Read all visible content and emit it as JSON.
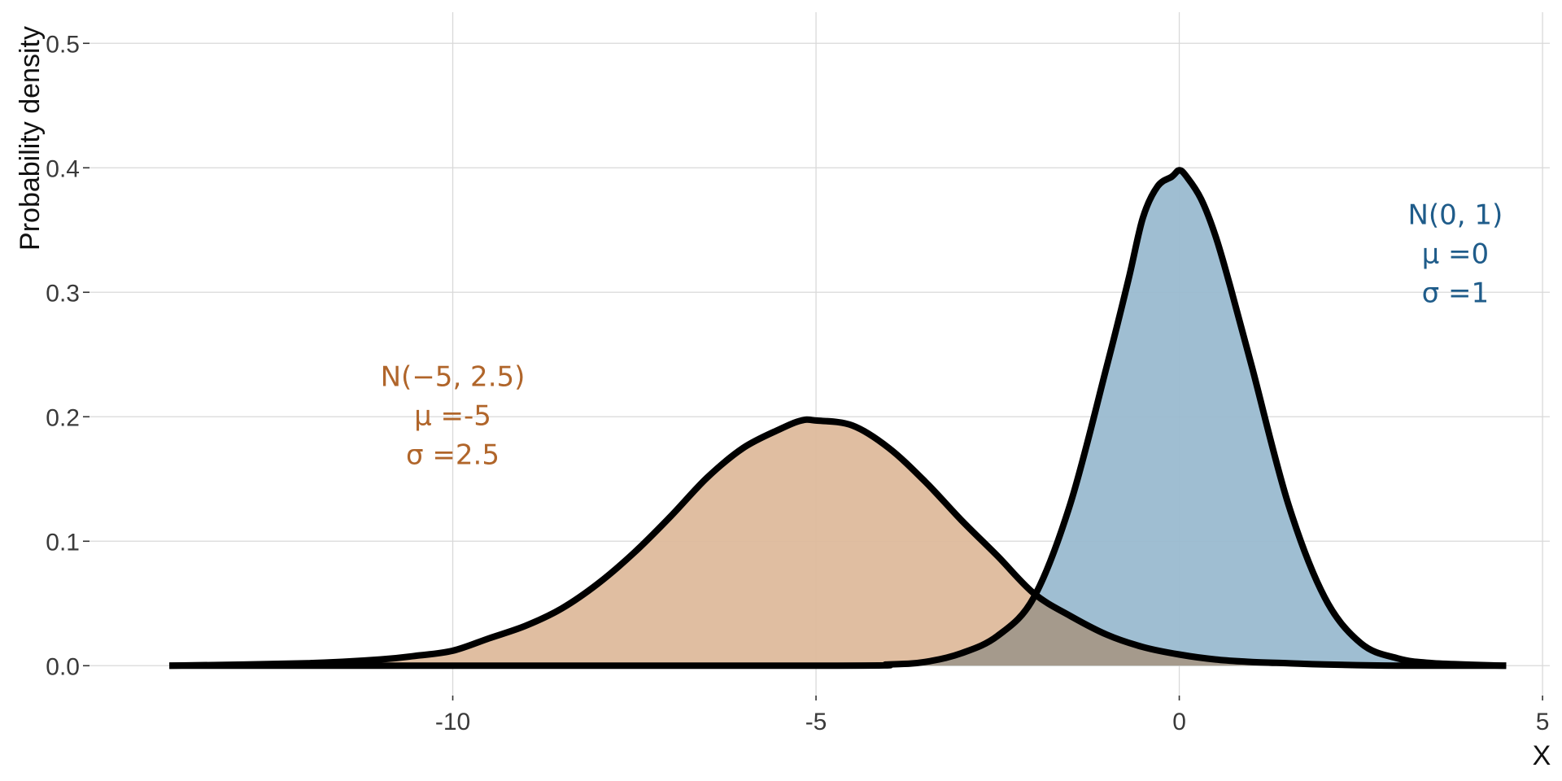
{
  "chart_data": {
    "type": "area",
    "xlabel": "X",
    "ylabel": "Probability density",
    "xlim": [
      -15.0,
      5.1
    ],
    "ylim": [
      -0.024,
      0.525
    ],
    "xticks": [
      -10,
      -5,
      0,
      5
    ],
    "xtick_labels": [
      "-10",
      "-5",
      "0",
      "5"
    ],
    "yticks": [
      0.0,
      0.1,
      0.2,
      0.3,
      0.4,
      0.5
    ],
    "ytick_labels": [
      "0.0",
      "0.1",
      "0.2",
      "0.3",
      "0.4",
      "0.5"
    ],
    "grid": true,
    "series": [
      {
        "fill": "#deba9c",
        "text_color": "#b0652a",
        "x": [
          -13.9,
          -12.0,
          -11.0,
          -10.5,
          -10.0,
          -9.5,
          -9.0,
          -8.5,
          -8.0,
          -7.5,
          -7.0,
          -6.5,
          -6.0,
          -5.5,
          -5.2,
          -5.0,
          -4.5,
          -4.0,
          -3.5,
          -3.0,
          -2.5,
          -2.0,
          -1.5,
          -1.0,
          -0.5,
          0.0,
          0.5,
          1.0,
          1.5,
          2.0,
          3.0,
          4.5
        ],
        "y": [
          0.0,
          0.002,
          0.005,
          0.008,
          0.012,
          0.022,
          0.032,
          0.046,
          0.066,
          0.091,
          0.12,
          0.151,
          0.175,
          0.19,
          0.197,
          0.197,
          0.193,
          0.175,
          0.148,
          0.117,
          0.088,
          0.058,
          0.04,
          0.025,
          0.015,
          0.009,
          0.005,
          0.003,
          0.002,
          0.001,
          0.0,
          0.0
        ],
        "annotation": [
          "N(−5, 2.5)",
          "μ =-5",
          "σ =2.5"
        ],
        "annotation_pos": [
          -10.0,
          0.2
        ]
      },
      {
        "fill": "#9abad0",
        "text_color": "#1f5c8a",
        "x": [
          -13.9,
          -5.0,
          -4.0,
          -3.5,
          -3.0,
          -2.5,
          -2.0,
          -1.5,
          -1.0,
          -0.7,
          -0.5,
          -0.3,
          -0.1,
          0.0,
          0.1,
          0.3,
          0.5,
          0.7,
          1.0,
          1.5,
          2.0,
          2.5,
          3.0,
          3.5,
          4.5
        ],
        "y": [
          0.0,
          0.0,
          0.001,
          0.003,
          0.01,
          0.024,
          0.055,
          0.13,
          0.24,
          0.31,
          0.36,
          0.385,
          0.393,
          0.398,
          0.393,
          0.375,
          0.345,
          0.305,
          0.24,
          0.13,
          0.055,
          0.018,
          0.006,
          0.002,
          0.0
        ],
        "annotation": [
          "N(0, 1)",
          "μ =0",
          "σ =1"
        ],
        "annotation_pos": [
          3.8,
          0.33
        ]
      }
    ],
    "overlap_fill": "#a59a8c"
  }
}
